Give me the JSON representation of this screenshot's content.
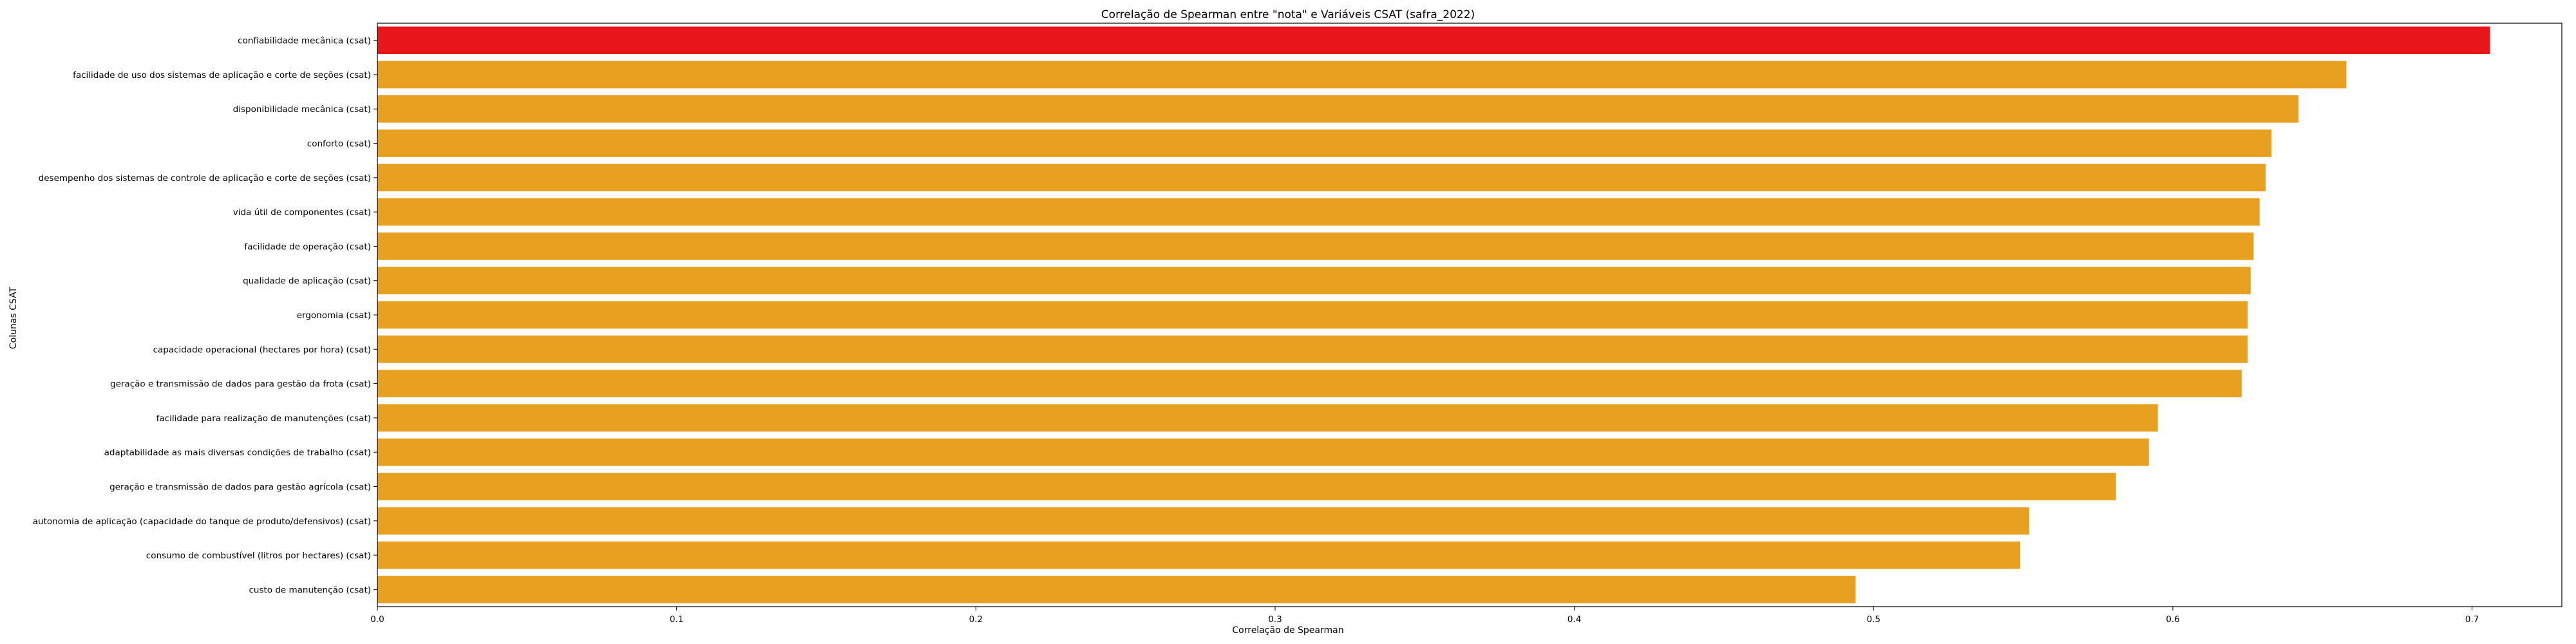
{
  "chart_data": {
    "type": "bar",
    "orientation": "horizontal",
    "title": "Correlação de Spearman entre \"nota\" e Variáveis CSAT (safra_2022)",
    "xlabel": "Correlação de Spearman",
    "ylabel": "Colunas CSAT",
    "xlim": [
      0,
      0.73
    ],
    "xticks": [
      "0.0",
      "0.1",
      "0.2",
      "0.3",
      "0.4",
      "0.5",
      "0.6",
      "0.7"
    ],
    "grid": false,
    "legend": "none",
    "highlight_color": "#e8151b",
    "bar_color": "#e8a020",
    "categories": [
      "confiabilidade mecânica (csat)",
      "facilidade de uso dos sistemas de aplicação e corte de seções (csat)",
      "disponibilidade mecânica (csat)",
      "conforto (csat)",
      "desempenho dos sistemas de controle de aplicação e corte de seções (csat)",
      "vida útil de componentes (csat)",
      "facilidade de operação (csat)",
      "qualidade de aplicação (csat)",
      "ergonomia (csat)",
      "capacidade operacional (hectares por hora) (csat)",
      "geração e transmissão de dados para gestão da frota (csat)",
      "facilidade para realização de manutenções (csat)",
      "adaptabilidade as mais diversas condições de trabalho (csat)",
      "geração e transmissão de dados para gestão agrícola (csat)",
      "autonomia de aplicação (capacidade do tanque de produto/defensivos) (csat)",
      "consumo de combustível (litros por hectares) (csat)",
      "custo de manutenção (csat)"
    ],
    "values": [
      0.706,
      0.658,
      0.642,
      0.633,
      0.631,
      0.629,
      0.627,
      0.626,
      0.625,
      0.625,
      0.623,
      0.595,
      0.592,
      0.581,
      0.552,
      0.549,
      0.494
    ],
    "highlight_index": 0
  }
}
